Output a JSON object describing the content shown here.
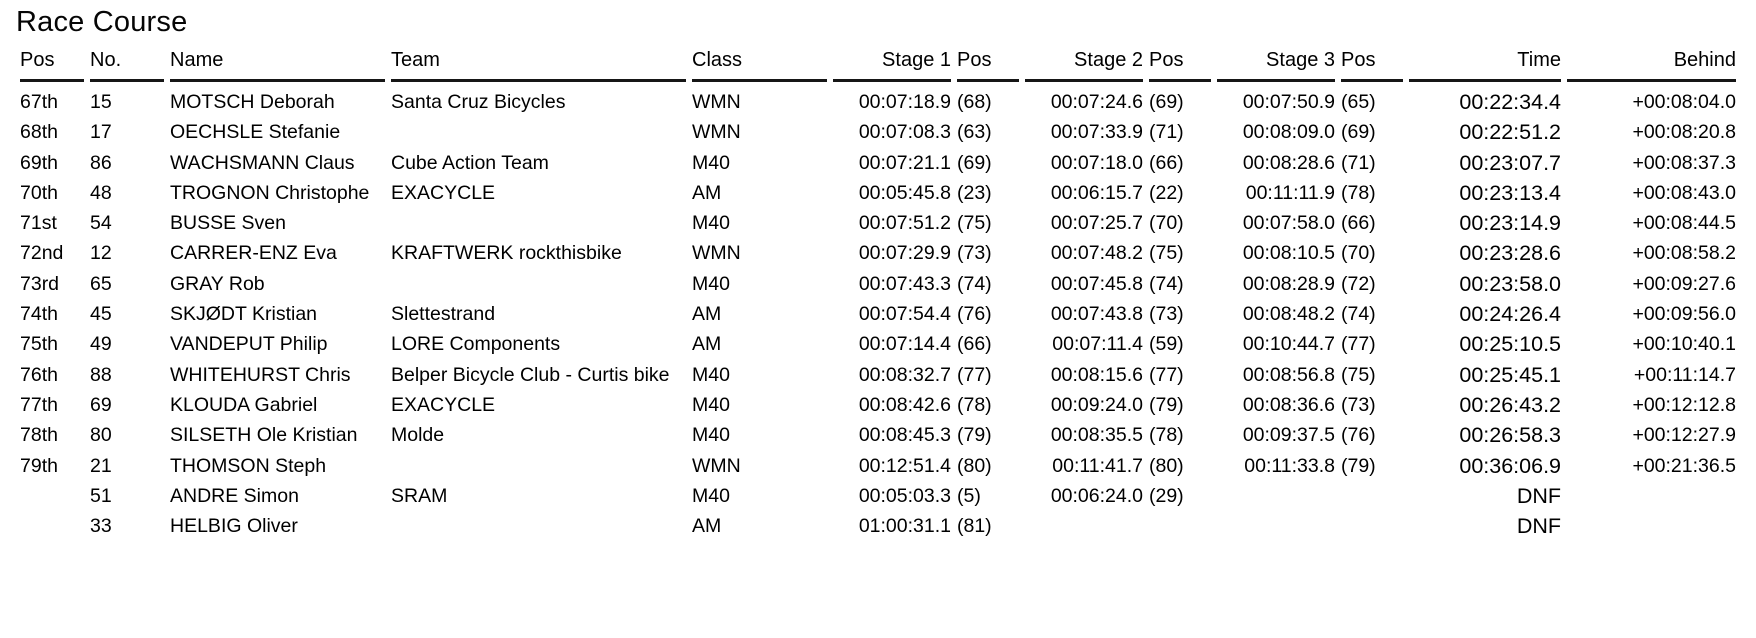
{
  "title": "Race Course",
  "colors": {
    "background": "#ffffff",
    "text": "#000000",
    "header_rule": "#161616"
  },
  "table": {
    "headers": {
      "pos": "Pos",
      "no": "No.",
      "name": "Name",
      "team": "Team",
      "cls": "Class",
      "s1": "Stage 1",
      "s1_pos": "Pos",
      "s2": "Stage 2",
      "s2_pos": "Pos",
      "s3": "Stage 3",
      "s3_pos": "Pos",
      "time": "Time",
      "behind": "Behind"
    },
    "field_order": [
      "pos",
      "no",
      "name",
      "team",
      "cls",
      "s1",
      "s1_pos",
      "s2",
      "s2_pos",
      "s3",
      "s3_pos",
      "time",
      "behind"
    ],
    "rows": [
      {
        "pos": "67th",
        "no": "15",
        "name": "MOTSCH Deborah",
        "team": "Santa Cruz Bicycles",
        "cls": "WMN",
        "s1": "00:07:18.9",
        "s1_pos": "(68)",
        "s2": "00:07:24.6",
        "s2_pos": "(69)",
        "s3": "00:07:50.9",
        "s3_pos": "(65)",
        "time": "00:22:34.4",
        "behind": "+00:08:04.0"
      },
      {
        "pos": "68th",
        "no": "17",
        "name": "OECHSLE Stefanie",
        "team": "",
        "cls": "WMN",
        "s1": "00:07:08.3",
        "s1_pos": "(63)",
        "s2": "00:07:33.9",
        "s2_pos": "(71)",
        "s3": "00:08:09.0",
        "s3_pos": "(69)",
        "time": "00:22:51.2",
        "behind": "+00:08:20.8"
      },
      {
        "pos": "69th",
        "no": "86",
        "name": "WACHSMANN Claus",
        "team": "Cube Action Team",
        "cls": "M40",
        "s1": "00:07:21.1",
        "s1_pos": "(69)",
        "s2": "00:07:18.0",
        "s2_pos": "(66)",
        "s3": "00:08:28.6",
        "s3_pos": "(71)",
        "time": "00:23:07.7",
        "behind": "+00:08:37.3"
      },
      {
        "pos": "70th",
        "no": "48",
        "name": "TROGNON Christophe",
        "team": "EXACYCLE",
        "cls": "AM",
        "s1": "00:05:45.8",
        "s1_pos": "(23)",
        "s2": "00:06:15.7",
        "s2_pos": "(22)",
        "s3": "00:11:11.9",
        "s3_pos": "(78)",
        "time": "00:23:13.4",
        "behind": "+00:08:43.0"
      },
      {
        "pos": "71st",
        "no": "54",
        "name": "BUSSE Sven",
        "team": "",
        "cls": "M40",
        "s1": "00:07:51.2",
        "s1_pos": "(75)",
        "s2": "00:07:25.7",
        "s2_pos": "(70)",
        "s3": "00:07:58.0",
        "s3_pos": "(66)",
        "time": "00:23:14.9",
        "behind": "+00:08:44.5"
      },
      {
        "pos": "72nd",
        "no": "12",
        "name": "CARRER-ENZ Eva",
        "team": "KRAFTWERK rockthisbike",
        "cls": "WMN",
        "s1": "00:07:29.9",
        "s1_pos": "(73)",
        "s2": "00:07:48.2",
        "s2_pos": "(75)",
        "s3": "00:08:10.5",
        "s3_pos": "(70)",
        "time": "00:23:28.6",
        "behind": "+00:08:58.2"
      },
      {
        "pos": "73rd",
        "no": "65",
        "name": "GRAY Rob",
        "team": "",
        "cls": "M40",
        "s1": "00:07:43.3",
        "s1_pos": "(74)",
        "s2": "00:07:45.8",
        "s2_pos": "(74)",
        "s3": "00:08:28.9",
        "s3_pos": "(72)",
        "time": "00:23:58.0",
        "behind": "+00:09:27.6"
      },
      {
        "pos": "74th",
        "no": "45",
        "name": "SKJØDT Kristian",
        "team": "Slettestrand",
        "cls": "AM",
        "s1": "00:07:54.4",
        "s1_pos": "(76)",
        "s2": "00:07:43.8",
        "s2_pos": "(73)",
        "s3": "00:08:48.2",
        "s3_pos": "(74)",
        "time": "00:24:26.4",
        "behind": "+00:09:56.0"
      },
      {
        "pos": "75th",
        "no": "49",
        "name": "VANDEPUT Philip",
        "team": "LORE Components",
        "cls": "AM",
        "s1": "00:07:14.4",
        "s1_pos": "(66)",
        "s2": "00:07:11.4",
        "s2_pos": "(59)",
        "s3": "00:10:44.7",
        "s3_pos": "(77)",
        "time": "00:25:10.5",
        "behind": "+00:10:40.1"
      },
      {
        "pos": "76th",
        "no": "88",
        "name": "WHITEHURST Chris",
        "team": "Belper Bicycle Club - Curtis bike",
        "cls": "M40",
        "s1": "00:08:32.7",
        "s1_pos": "(77)",
        "s2": "00:08:15.6",
        "s2_pos": "(77)",
        "s3": "00:08:56.8",
        "s3_pos": "(75)",
        "time": "00:25:45.1",
        "behind": "+00:11:14.7"
      },
      {
        "pos": "77th",
        "no": "69",
        "name": "KLOUDA Gabriel",
        "team": "EXACYCLE",
        "cls": "M40",
        "s1": "00:08:42.6",
        "s1_pos": "(78)",
        "s2": "00:09:24.0",
        "s2_pos": "(79)",
        "s3": "00:08:36.6",
        "s3_pos": "(73)",
        "time": "00:26:43.2",
        "behind": "+00:12:12.8"
      },
      {
        "pos": "78th",
        "no": "80",
        "name": "SILSETH Ole Kristian",
        "team": "Molde",
        "cls": "M40",
        "s1": "00:08:45.3",
        "s1_pos": "(79)",
        "s2": "00:08:35.5",
        "s2_pos": "(78)",
        "s3": "00:09:37.5",
        "s3_pos": "(76)",
        "time": "00:26:58.3",
        "behind": "+00:12:27.9"
      },
      {
        "pos": "79th",
        "no": "21",
        "name": "THOMSON Steph",
        "team": "",
        "cls": "WMN",
        "s1": "00:12:51.4",
        "s1_pos": "(80)",
        "s2": "00:11:41.7",
        "s2_pos": "(80)",
        "s3": "00:11:33.8",
        "s3_pos": "(79)",
        "time": "00:36:06.9",
        "behind": "+00:21:36.5"
      },
      {
        "pos": "",
        "no": "51",
        "name": "ANDRE Simon",
        "team": "SRAM",
        "cls": "M40",
        "s1": "00:05:03.3",
        "s1_pos": "(5)",
        "s2": "00:06:24.0",
        "s2_pos": "(29)",
        "s3": "",
        "s3_pos": "",
        "time": "DNF",
        "behind": ""
      },
      {
        "pos": "",
        "no": "33",
        "name": "HELBIG Oliver",
        "team": "",
        "cls": "AM",
        "s1": "01:00:31.1",
        "s1_pos": "(81)",
        "s2": "",
        "s2_pos": "",
        "s3": "",
        "s3_pos": "",
        "time": "DNF",
        "behind": ""
      }
    ]
  }
}
